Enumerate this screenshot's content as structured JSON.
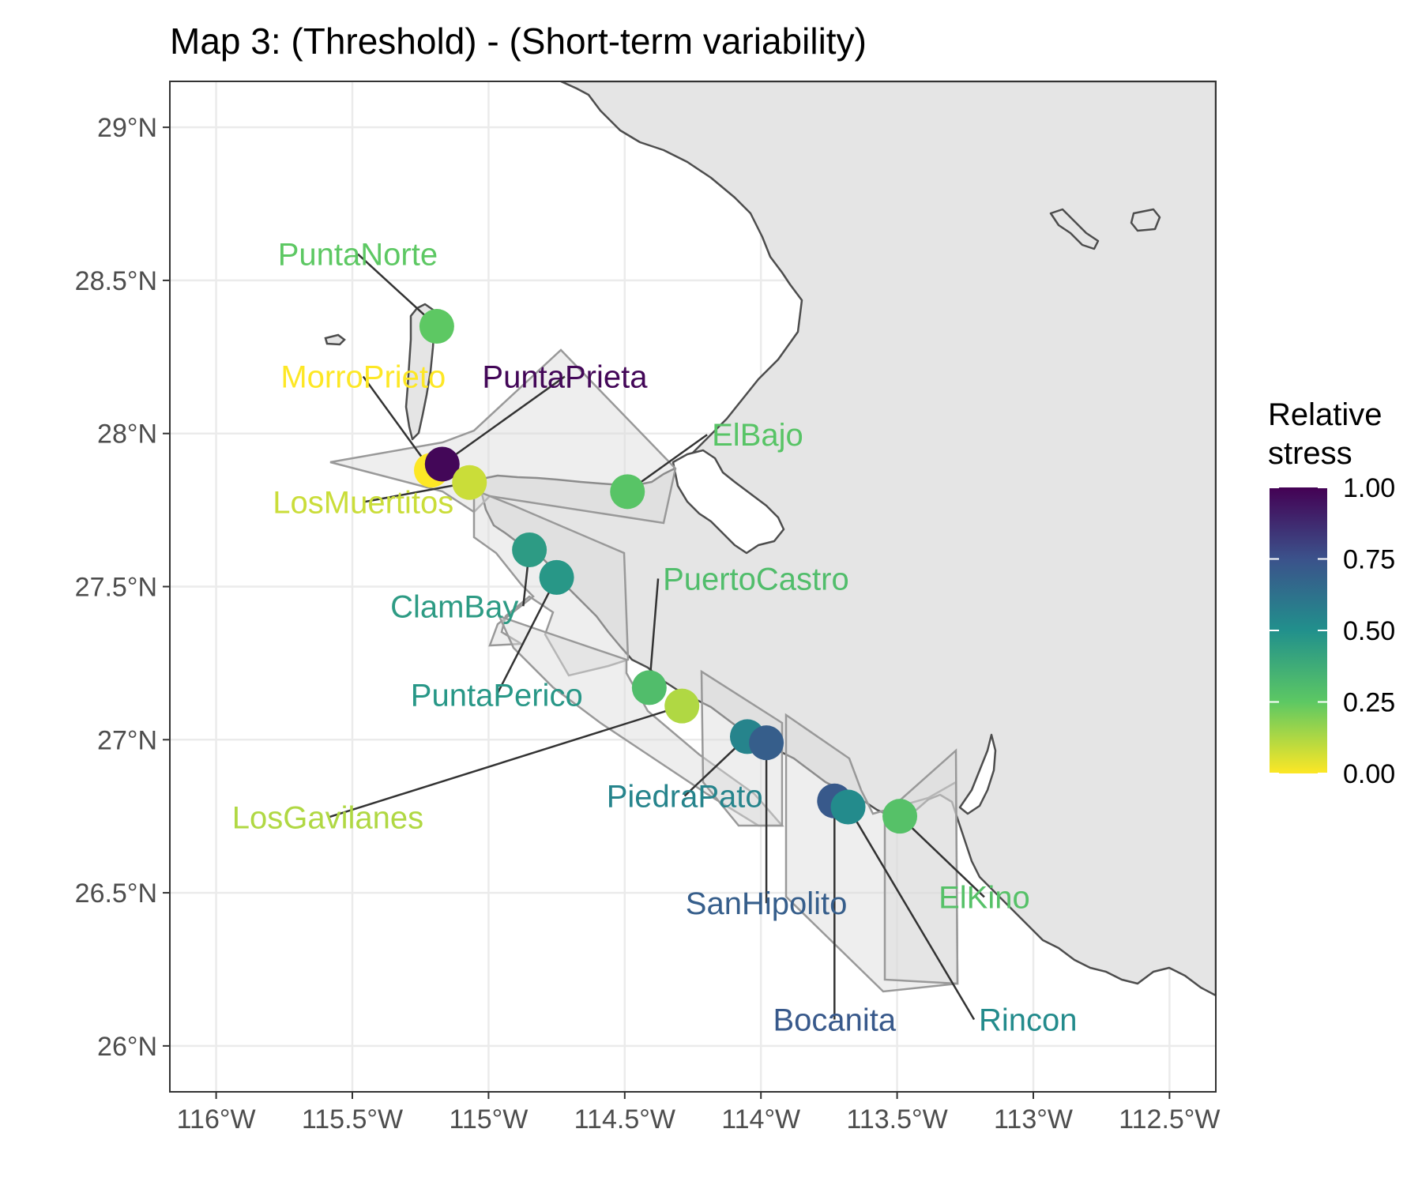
{
  "title": "Map 3: (Threshold) - (Short-term variability)",
  "legend": {
    "title_line1": "Relative",
    "title_line2": "stress",
    "breaks": [
      1.0,
      0.75,
      0.5,
      0.25,
      0.0
    ],
    "labels": [
      "1.00",
      "0.75",
      "0.50",
      "0.25",
      "0.00"
    ],
    "palette": [
      "#440154",
      "#3b528b",
      "#21908c",
      "#5dc863",
      "#fde725"
    ]
  },
  "axes": {
    "lon_range": [
      -116.17,
      -112.33
    ],
    "lat_range": [
      25.85,
      29.15
    ],
    "x_ticks": [
      {
        "value": -116.0,
        "label": "116°W"
      },
      {
        "value": -115.5,
        "label": "115.5°W"
      },
      {
        "value": -115.0,
        "label": "115°W"
      },
      {
        "value": -114.5,
        "label": "114.5°W"
      },
      {
        "value": -114.0,
        "label": "114°W"
      },
      {
        "value": -113.5,
        "label": "113.5°W"
      },
      {
        "value": -113.0,
        "label": "113°W"
      },
      {
        "value": -112.5,
        "label": "112.5°W"
      }
    ],
    "y_ticks": [
      {
        "value": 29.0,
        "label": "29°N"
      },
      {
        "value": 28.5,
        "label": "28.5°N"
      },
      {
        "value": 28.0,
        "label": "28°N"
      },
      {
        "value": 27.5,
        "label": "27.5°N"
      },
      {
        "value": 27.0,
        "label": "27°N"
      },
      {
        "value": 26.5,
        "label": "26.5°N"
      },
      {
        "value": 26.0,
        "label": "26°N"
      }
    ],
    "grid": true
  },
  "sites": [
    {
      "name": "PuntaNorte",
      "lon": -115.19,
      "lat": 28.35,
      "stress": 0.25,
      "label_lon": -115.48,
      "label_lat": 28.55,
      "anchor": "middle"
    },
    {
      "name": "MorroPrieto",
      "lon": -115.21,
      "lat": 27.88,
      "stress": 0.0,
      "label_lon": -115.46,
      "label_lat": 28.15,
      "anchor": "middle"
    },
    {
      "name": "PuntaPrieta",
      "lon": -115.17,
      "lat": 27.9,
      "stress": 0.98,
      "label_lon": -114.72,
      "label_lat": 28.15,
      "anchor": "middle"
    },
    {
      "name": "LosMuertitos",
      "lon": -115.07,
      "lat": 27.84,
      "stress": 0.08,
      "label_lon": -115.46,
      "label_lat": 27.74,
      "anchor": "middle"
    },
    {
      "name": "ElBajo",
      "lon": -114.49,
      "lat": 27.81,
      "stress": 0.27,
      "label_lon": -114.18,
      "label_lat": 27.96,
      "anchor": "start"
    },
    {
      "name": "ClamBay",
      "lon": -114.85,
      "lat": 27.62,
      "stress": 0.45,
      "label_lon": -114.89,
      "label_lat": 27.4,
      "anchor": "end"
    },
    {
      "name": "PuntaPerico",
      "lon": -114.75,
      "lat": 27.53,
      "stress": 0.47,
      "label_lon": -114.97,
      "label_lat": 27.11,
      "anchor": "middle"
    },
    {
      "name": "PuertoCastro",
      "lon": -114.41,
      "lat": 27.17,
      "stress": 0.3,
      "label_lon": -114.36,
      "label_lat": 27.49,
      "anchor": "start"
    },
    {
      "name": "LosGavilanes",
      "lon": -114.29,
      "lat": 27.11,
      "stress": 0.12,
      "label_lon": -115.59,
      "label_lat": 26.71,
      "anchor": "middle"
    },
    {
      "name": "PiedraPato",
      "lon": -114.05,
      "lat": 27.01,
      "stress": 0.55,
      "label_lon": -114.28,
      "label_lat": 26.78,
      "anchor": "middle"
    },
    {
      "name": "SanHipolito",
      "lon": -113.98,
      "lat": 26.99,
      "stress": 0.7,
      "label_lon": -113.98,
      "label_lat": 26.43,
      "anchor": "middle"
    },
    {
      "name": "Bocanita",
      "lon": -113.73,
      "lat": 26.8,
      "stress": 0.72,
      "label_lon": -113.73,
      "label_lat": 26.05,
      "anchor": "middle"
    },
    {
      "name": "Rincon",
      "lon": -113.68,
      "lat": 26.78,
      "stress": 0.52,
      "label_lon": -113.2,
      "label_lat": 26.05,
      "anchor": "start"
    },
    {
      "name": "ElKino",
      "lon": -113.49,
      "lat": 26.75,
      "stress": 0.28,
      "label_lon": -113.18,
      "label_lat": 26.45,
      "anchor": "middle"
    }
  ]
}
